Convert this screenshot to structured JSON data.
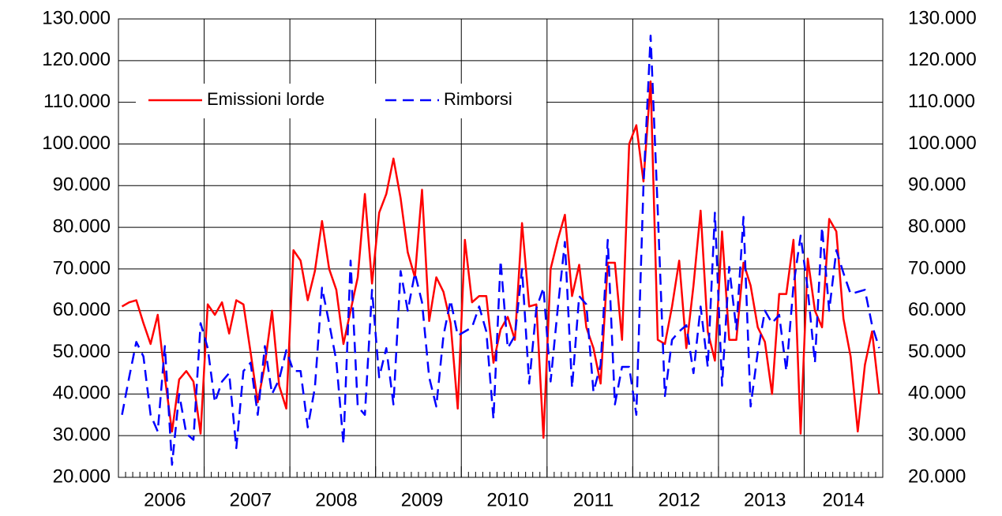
{
  "chart_data": {
    "type": "line",
    "categories": [
      null,
      null,
      null,
      null,
      null,
      null,
      "2006",
      null,
      null,
      null,
      null,
      null,
      null,
      null,
      null,
      null,
      null,
      null,
      "2007",
      null,
      null,
      null,
      null,
      null,
      null,
      null,
      null,
      null,
      null,
      null,
      "2008",
      null,
      null,
      null,
      null,
      null,
      null,
      null,
      null,
      null,
      null,
      null,
      "2009",
      null,
      null,
      null,
      null,
      null,
      null,
      null,
      null,
      null,
      null,
      null,
      "2010",
      null,
      null,
      null,
      null,
      null,
      null,
      null,
      null,
      null,
      null,
      null,
      "2011",
      null,
      null,
      null,
      null,
      null,
      null,
      null,
      null,
      null,
      null,
      null,
      "2012",
      null,
      null,
      null,
      null,
      null,
      null,
      null,
      null,
      null,
      null,
      null,
      "2013",
      null,
      null,
      null,
      null,
      null,
      null,
      null,
      null,
      null,
      null,
      "2014",
      null,
      null,
      null,
      null,
      null
    ],
    "series": [
      {
        "name": "Emissioni lorde",
        "color": "#ff0000",
        "line_style": "solid",
        "values": [
          61000,
          62000,
          62500,
          57000,
          52000,
          59000,
          44000,
          31000,
          43500,
          45500,
          43000,
          30500,
          61500,
          59000,
          62000,
          54500,
          62500,
          61500,
          50000,
          38000,
          47000,
          60000,
          42000,
          36500,
          74500,
          72000,
          62500,
          69500,
          81500,
          70000,
          65000,
          52000,
          60000,
          68000,
          88000,
          66500,
          83500,
          88000,
          96500,
          87000,
          74000,
          68000,
          89000,
          57500,
          68000,
          64500,
          57000,
          36500,
          77000,
          62000,
          63500,
          63500,
          47500,
          55500,
          58500,
          53000,
          81000,
          61000,
          61500,
          29500,
          70000,
          77000,
          83000,
          63500,
          71000,
          56000,
          51000,
          42500,
          71500,
          71500,
          53000,
          100000,
          104500,
          91000,
          115000,
          53000,
          52000,
          61000,
          72000,
          51000,
          66000,
          84000,
          55000,
          48000,
          79000,
          53000,
          53000,
          71500,
          66000,
          56000,
          52500,
          40000,
          64000,
          64000,
          77000,
          30500,
          72500,
          60000,
          56000,
          82000,
          79000,
          58000,
          49000,
          31000,
          47000,
          55000,
          40000
        ]
      },
      {
        "name": "Rimborsi",
        "color": "#0000ff",
        "line_style": "dashed",
        "values": [
          35000,
          44000,
          52500,
          49000,
          35000,
          31000,
          51500,
          23000,
          40000,
          30500,
          29000,
          57000,
          51000,
          38000,
          43000,
          45000,
          27000,
          45500,
          47500,
          35000,
          51500,
          40000,
          43500,
          50500,
          45500,
          45500,
          32000,
          41500,
          65500,
          57000,
          48000,
          28000,
          72000,
          37000,
          35000,
          65000,
          44000,
          51000,
          37500,
          69500,
          60000,
          69000,
          62000,
          44000,
          37000,
          54000,
          62500,
          54000,
          55000,
          56000,
          61000,
          55000,
          34000,
          72000,
          51000,
          54000,
          70000,
          42500,
          60500,
          65500,
          43000,
          60500,
          76500,
          41500,
          63500,
          61500,
          40500,
          47000,
          77000,
          37500,
          46500,
          46500,
          35000,
          90000,
          126000,
          84000,
          39500,
          53000,
          55000,
          56500,
          45000,
          61000,
          46500,
          83500,
          42000,
          70500,
          55500,
          82500,
          37000,
          50000,
          60000,
          57000,
          59000,
          45500,
          66000,
          78000,
          65000,
          47500,
          80000,
          60000,
          74500,
          69000,
          64000,
          64500,
          65000,
          56500,
          51000
        ]
      }
    ],
    "ylim": [
      20000,
      130000
    ],
    "yticks": [
      {
        "value": 20000,
        "label": "20.000"
      },
      {
        "value": 30000,
        "label": "30.000"
      },
      {
        "value": 40000,
        "label": "40.000"
      },
      {
        "value": 50000,
        "label": "50.000"
      },
      {
        "value": 60000,
        "label": "60.000"
      },
      {
        "value": 70000,
        "label": "70.000"
      },
      {
        "value": 80000,
        "label": "80.000"
      },
      {
        "value": 90000,
        "label": "90.000"
      },
      {
        "value": 100000,
        "label": "100.000"
      },
      {
        "value": 110000,
        "label": "110.000"
      },
      {
        "value": 120000,
        "label": "120.000"
      },
      {
        "value": 130000,
        "label": "130.000"
      }
    ],
    "grid": true
  }
}
